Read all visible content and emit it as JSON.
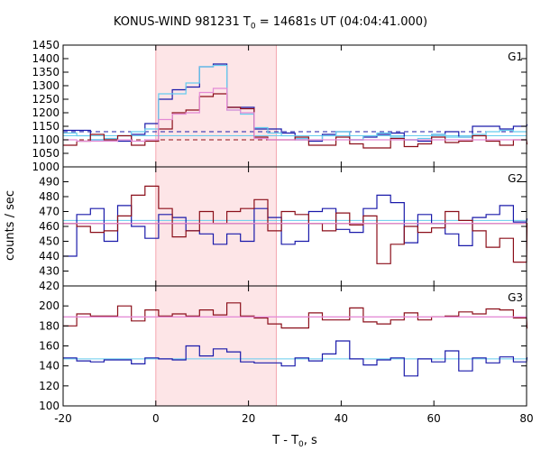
{
  "chart_data": {
    "type": "line",
    "title": {
      "prefix": "KONUS-WIND 981231 T",
      "sub": "0",
      "suffix": " = 14681s UT (04:04:41.000)"
    },
    "xlabel": {
      "prefix": "T - T",
      "sub": "0",
      "suffix": ", s"
    },
    "ylabel": "counts / sec",
    "xlim": [
      -20,
      80
    ],
    "xticks": [
      -20,
      0,
      20,
      40,
      60,
      80
    ],
    "highlight": {
      "x0": 0,
      "x1": 26,
      "color": "#fde5e7"
    },
    "bin_width": 2.944,
    "panels": [
      {
        "label": "G1",
        "ylim": [
          1000,
          1450
        ],
        "yticks": [
          1000,
          1050,
          1100,
          1150,
          1200,
          1250,
          1300,
          1350,
          1400,
          1450
        ],
        "series": [
          {
            "color": "#1a1aaa",
            "x_start": -20,
            "values": [
              1135,
              1135,
              1100,
              1100,
              1095,
              1120,
              1160,
              1250,
              1285,
              1295,
              1370,
              1380,
              1220,
              1220,
              1140,
              1140,
              1125,
              1100,
              1095,
              1120,
              1130,
              1100,
              1110,
              1120,
              1125,
              1100,
              1095,
              1120,
              1130,
              1110,
              1150,
              1150,
              1140,
              1150,
              1155
            ]
          },
          {
            "color": "#66ccee",
            "x_start": -20,
            "values": [
              1125,
              1115,
              1100,
              1105,
              1115,
              1130,
              1140,
              1270,
              1270,
              1310,
              1370,
              1375,
              1210,
              1195,
              1145,
              1125,
              1115,
              1105,
              1100,
              1115,
              1130,
              1100,
              1115,
              1125,
              1110,
              1100,
              1105,
              1120,
              1110,
              1110,
              1120,
              1130,
              1135,
              1130,
              1130
            ]
          },
          {
            "color": "#8b0f1a",
            "x_start": -20,
            "values": [
              1080,
              1095,
              1120,
              1100,
              1115,
              1080,
              1095,
              1140,
              1200,
              1210,
              1260,
              1270,
              1220,
              1215,
              1110,
              1100,
              1100,
              1110,
              1080,
              1080,
              1110,
              1085,
              1070,
              1070,
              1105,
              1075,
              1085,
              1110,
              1090,
              1095,
              1115,
              1095,
              1080,
              1100,
              1085
            ]
          },
          {
            "color": "#e48ad6",
            "x_start": -20,
            "values": [
              1100,
              1095,
              1095,
              1095,
              1100,
              1095,
              1100,
              1175,
              1195,
              1200,
              1275,
              1290,
              1210,
              1200,
              1105,
              1100,
              1100,
              1100,
              1100,
              1100,
              1100,
              1100,
              1100,
              1100,
              1100,
              1100,
              1100,
              1100,
              1100,
              1100,
              1100,
              1100,
              1100,
              1100,
              1100
            ]
          }
        ],
        "levels": [
          {
            "y": 1130,
            "color": "#1a1aaa",
            "dash": true
          },
          {
            "y": 1115,
            "color": "#66ccee",
            "dash": false
          },
          {
            "y": 1100,
            "color": "#8b0f1a",
            "dash": true
          }
        ]
      },
      {
        "label": "G2",
        "ylim": [
          420,
          500
        ],
        "yticks": [
          420,
          430,
          440,
          450,
          460,
          470,
          480,
          490
        ],
        "series": [
          {
            "color": "#1a1aaa",
            "x_start": -20,
            "values": [
              440,
              468,
              472,
              450,
              474,
              460,
              452,
              468,
              466,
              457,
              455,
              448,
              455,
              450,
              472,
              466,
              448,
              450,
              470,
              472,
              458,
              456,
              472,
              481,
              476,
              449,
              468,
              462,
              455,
              447,
              466,
              468,
              474,
              463,
              465
            ]
          },
          {
            "color": "#8b0f1a",
            "x_start": -20,
            "values": [
              462,
              460,
              456,
              457,
              467,
              481,
              487,
              472,
              453,
              457,
              470,
              462,
              470,
              472,
              478,
              457,
              470,
              468,
              462,
              457,
              469,
              461,
              467,
              435,
              448,
              460,
              456,
              459,
              470,
              464,
              457,
              446,
              452,
              436,
              462
            ]
          },
          {
            "color": "#e48ad6",
            "x_start": -20,
            "values": [
              462,
              462,
              462,
              462,
              462,
              462,
              462,
              462,
              462,
              462,
              462,
              462,
              462,
              462,
              462,
              462,
              462,
              462,
              462,
              462,
              462,
              462,
              462,
              462,
              462,
              462,
              462,
              462,
              462,
              462,
              462,
              462,
              462,
              462,
              462
            ]
          }
        ],
        "levels": [
          {
            "y": 464,
            "color": "#66ccee",
            "dash": false
          },
          {
            "y": 462,
            "color": "#8b0f1a",
            "dash": false
          }
        ]
      },
      {
        "label": "G3",
        "ylim": [
          100,
          220
        ],
        "yticks": [
          100,
          120,
          140,
          160,
          180,
          200
        ],
        "series": [
          {
            "color": "#1a1aaa",
            "x_start": -20,
            "values": [
              148,
              145,
              144,
              146,
              146,
              142,
              148,
              147,
              146,
              160,
              150,
              157,
              154,
              144,
              143,
              143,
              140,
              148,
              145,
              152,
              165,
              147,
              141,
              146,
              148,
              130,
              147,
              144,
              155,
              135,
              148,
              143,
              149,
              144,
              148
            ]
          },
          {
            "color": "#8b0f1a",
            "x_start": -20,
            "values": [
              180,
              192,
              190,
              190,
              200,
              185,
              196,
              190,
              192,
              190,
              196,
              191,
              203,
              190,
              188,
              182,
              178,
              178,
              193,
              186,
              186,
              198,
              184,
              182,
              186,
              193,
              186,
              189,
              190,
              194,
              192,
              197,
              196,
              188,
              178
            ]
          },
          {
            "color": "#e48ad6",
            "x_start": -20,
            "values": [
              189,
              189,
              189,
              189,
              189,
              189,
              189,
              189,
              189,
              189,
              189,
              189,
              189,
              189,
              189,
              189,
              189,
              189,
              189,
              189,
              189,
              189,
              189,
              189,
              189,
              189,
              189,
              189,
              189,
              189,
              189,
              189,
              189,
              189,
              189
            ]
          }
        ],
        "levels": [
          {
            "y": 147,
            "color": "#66ccee",
            "dash": false
          },
          {
            "y": 189,
            "color": "#e48ad6",
            "dash": false
          }
        ]
      }
    ]
  }
}
